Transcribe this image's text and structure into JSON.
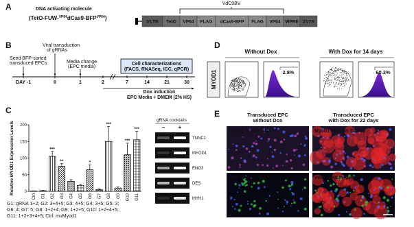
{
  "panels": {
    "A": {
      "label": "A",
      "title": "DNA activating molecule",
      "construct": [
        "(TetO-FUW-",
        "VP64",
        "dCas9-BFP",
        "VP64",
        ")"
      ],
      "bracket_label": "VdC9BV",
      "elements": [
        {
          "name": "5'LTR",
          "text_color": "#ffffff",
          "fill": "#5a5a5a"
        },
        {
          "name": "TetO",
          "text_color": "#f2e24a",
          "fill": "#6e6e6e"
        },
        {
          "name": "VP64",
          "text_color": "#ff7a3a",
          "fill": "#7e7e7e"
        },
        {
          "name": "FLAG",
          "text_color": "#ff6a6a",
          "fill": "#8a8a8a"
        },
        {
          "name": "dCas9-BFP",
          "text_color": "#7fb2ff",
          "fill": "#8a8a8a"
        },
        {
          "name": "FLAG",
          "text_color": "#ff6a6a",
          "fill": "#8a8a8a"
        },
        {
          "name": "VP64",
          "text_color": "#ff7a3a",
          "fill": "#7e7e7e"
        },
        {
          "name": "WPRE",
          "text_color": "#ffffff",
          "fill": "#6e6e6e"
        },
        {
          "name": "3'LTR",
          "text_color": "#ffffff",
          "fill": "#5a5a5a"
        }
      ]
    },
    "B": {
      "label": "B",
      "seed": [
        "Seed BFP-sorted",
        "transduced EPCs"
      ],
      "viral": [
        "Viral transduction",
        "of gRNAs"
      ],
      "media": [
        "Media change",
        "(EPC media)"
      ],
      "characterization": [
        "Cell characterizations",
        "(FACS, RNASeq, ICC, qPCR)"
      ],
      "dox": [
        "Dox induction",
        "EPC Media + DMEM (2% HS)"
      ],
      "days": [
        "DAY -1",
        "0",
        "1",
        "2",
        "7",
        "14",
        "21",
        "30"
      ]
    },
    "C": {
      "label": "C",
      "chart": {
        "type": "bar",
        "ylabel": "Relative MYOD1 Expression Levels",
        "categories": [
          "Ctrl",
          "G1",
          "G2",
          "G3",
          "G4",
          "G5",
          "G6",
          "G7",
          "G8",
          "G9",
          "G10",
          "G11"
        ],
        "values": [
          1,
          2,
          105,
          75,
          30,
          18,
          65,
          5,
          150,
          10,
          110,
          155
        ],
        "errors": [
          0.5,
          1,
          15,
          8,
          5,
          3,
          15,
          2,
          45,
          3,
          35,
          25
        ],
        "significance": [
          null,
          null,
          "***",
          "**",
          null,
          null,
          "*",
          null,
          "***",
          null,
          "***",
          "***"
        ],
        "ylim": [
          0,
          200
        ],
        "yticks": [
          0,
          50,
          100,
          150,
          200
        ]
      },
      "legend": [
        "G1: gRNA 1+2; G2: 3+4+5; G3: 4+5; G4: 3+5; G5: 3;",
        "G6: 4; G7: 5; G8: 1+2+4; G9: 1+2+5; G10: 1+2+4+5;",
        "G11: 1+2+3+4+5; Ctrl: muMyod1"
      ],
      "gel": {
        "title": "gRNA cocktails",
        "lanes": [
          "–",
          "+"
        ],
        "genes": [
          "TNNC1",
          "MYOD1",
          "ENO3",
          "DES",
          "MYH1"
        ]
      }
    },
    "D": {
      "label": "D",
      "row_label": "MYOD1",
      "conditions": [
        {
          "title": "Without Dox",
          "percent": "2.8%"
        },
        {
          "title": "With Dox for 14 days",
          "percent": "60.3%"
        }
      ]
    },
    "E": {
      "label": "E",
      "columns": [
        [
          "Transduced EPC",
          "without Dox"
        ],
        [
          "Transduced EPC",
          "with Dox for 22 days"
        ]
      ],
      "rows": [
        [
          {
            "text": "Myod1",
            "color": "#39d24a"
          },
          {
            "text": "Myosin",
            "color": "#ff3030"
          },
          {
            "text": "DAPI",
            "color": "#4f7dff"
          }
        ],
        [
          {
            "text": "vWF",
            "color": "#39d24a"
          },
          {
            "text": "Myosin",
            "color": "#ff3030"
          },
          {
            "text": "DAPI",
            "color": "#4f7dff"
          }
        ]
      ]
    }
  }
}
